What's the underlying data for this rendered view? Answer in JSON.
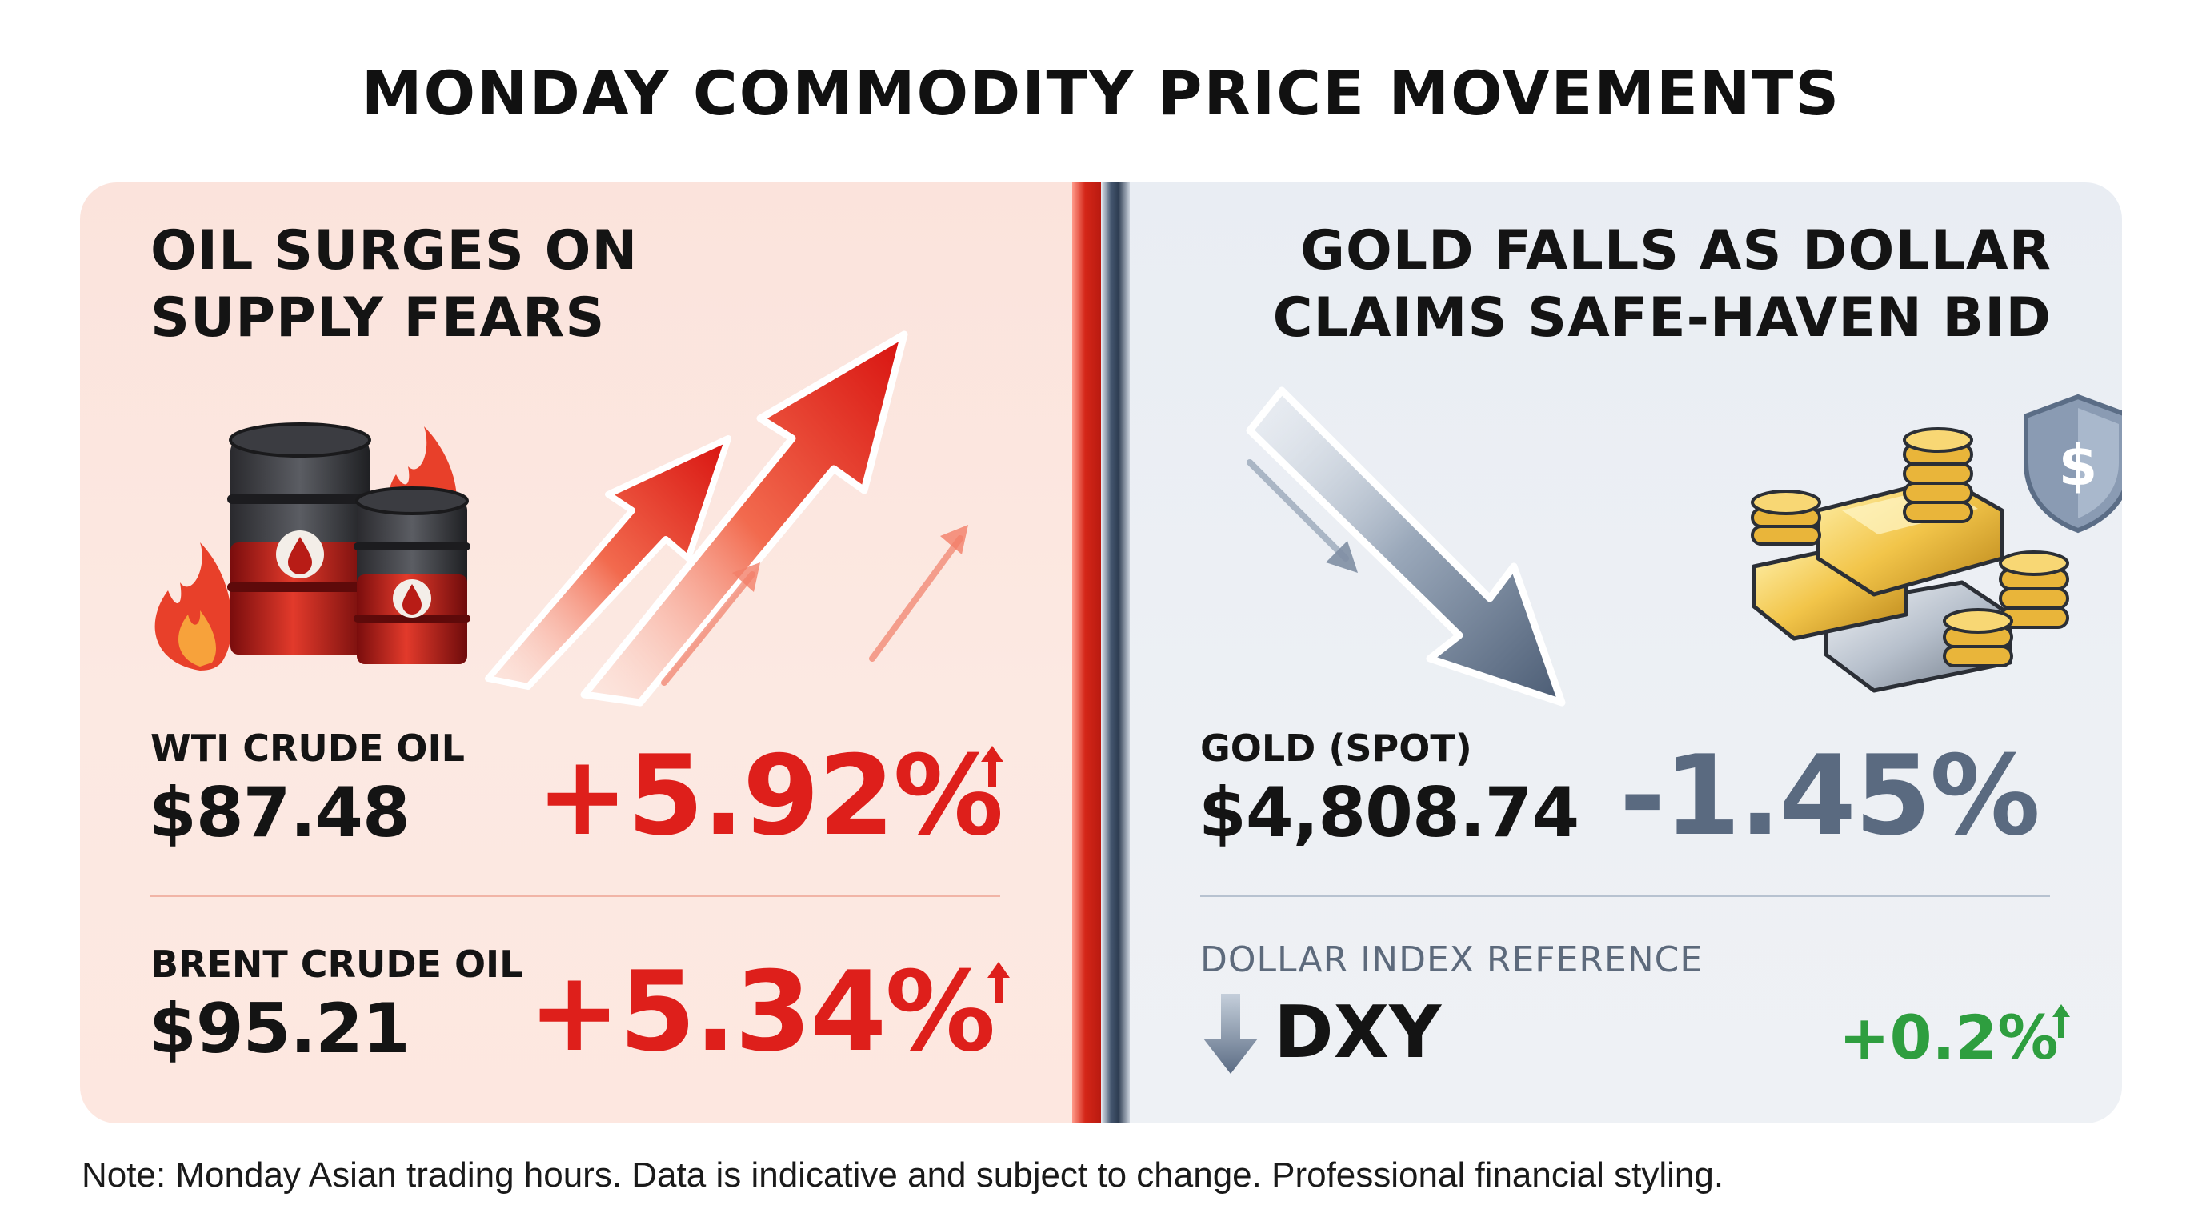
{
  "title": "MONDAY COMMODITY PRICE MOVEMENTS",
  "oil": {
    "headline_line1": "OIL SURGES ON",
    "headline_line2": "SUPPLY FEARS",
    "wti": {
      "label": "WTI CRUDE OIL",
      "price": "$87.48",
      "change": "+5.92%"
    },
    "brent": {
      "label": "BRENT CRUDE OIL",
      "price": "$95.21",
      "change": "+5.34%"
    },
    "accent_color": "#de1f1b"
  },
  "gold": {
    "headline_line1": "GOLD FALLS AS DOLLAR",
    "headline_line2": "CLAIMS SAFE-HAVEN BID",
    "spot": {
      "label": "GOLD (SPOT)",
      "price": "$4,808.74",
      "change": "-1.45%"
    },
    "dollar_index": {
      "reference_label": "DOLLAR INDEX REFERENCE",
      "name": "DXY",
      "change": "+0.2%"
    },
    "shield_symbol": "$",
    "accent_color": "#5a6a80",
    "positive_color": "#2e9e3f"
  },
  "icons": {
    "oil": [
      "oil-barrel-icon",
      "fire-icon",
      "up-arrow-icon"
    ],
    "gold": [
      "gold-bar-icon",
      "coin-stack-icon",
      "shield-dollar-icon",
      "down-arrow-icon"
    ]
  },
  "footnote": "Note: Monday Asian trading hours. Data is indicative and subject to change. Professional financial styling."
}
